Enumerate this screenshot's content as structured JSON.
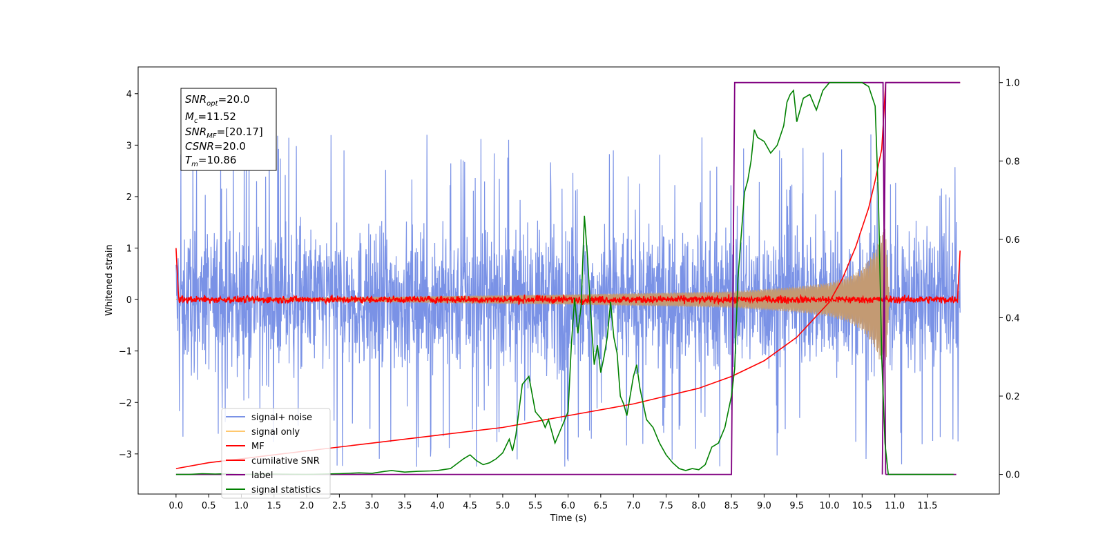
{
  "chart_data": {
    "type": "line",
    "xlabel": "Time (s)",
    "ylabel": "Whitened strain",
    "xlim": [
      -0.58,
      12.6
    ],
    "ylim": [
      -3.78,
      4.52
    ],
    "y2lim": [
      -0.05,
      1.04
    ],
    "x_ticks": [
      "0.0",
      "0.5",
      "1.0",
      "1.5",
      "2.0",
      "2.5",
      "3.0",
      "3.5",
      "4.0",
      "4.5",
      "5.0",
      "5.5",
      "6.0",
      "6.5",
      "7.0",
      "7.5",
      "8.0",
      "8.5",
      "9.0",
      "9.5",
      "10.0",
      "10.5",
      "11.0",
      "11.5"
    ],
    "y_ticks": [
      "−3",
      "−2",
      "−1",
      "0",
      "1",
      "2",
      "3",
      "4"
    ],
    "y2_ticks": [
      "0.0",
      "0.2",
      "0.4",
      "0.6",
      "0.8",
      "1.0"
    ],
    "annotation": {
      "snr_opt": {
        "base": "SNR",
        "sub": "opt",
        "value": "=20.0"
      },
      "mc": {
        "base": "M",
        "sub": "c",
        "value": "=11.52"
      },
      "snr_mf": {
        "base": "SNR",
        "sub": "MF",
        "value": "=[20.17]"
      },
      "csnr": {
        "base": "CSNR",
        "sub": "",
        "value": "=20.0"
      },
      "tm": {
        "base": "T",
        "sub": "m",
        "value": "=10.86"
      }
    },
    "legend_position": "lower-left",
    "series": [
      {
        "name": "signal+ noise",
        "color": "#7a92e6",
        "axis": "left",
        "kind": "noise",
        "t_start": 0.0,
        "t_end": 12.0,
        "core_amplitude": 1.5,
        "peak_range": [
          2.0,
          4.1
        ]
      },
      {
        "name": "signal only",
        "color": "#c39a73",
        "axis": "left",
        "kind": "chirp",
        "t_start": 0.0,
        "t_end": 12.0,
        "merger_time": 10.86,
        "envelope_t": [
          0.0,
          6.0,
          8.5,
          9.5,
          10.0,
          10.3,
          10.5,
          10.7,
          10.8,
          10.86,
          10.92,
          12.0
        ],
        "envelope_a": [
          0.0,
          0.1,
          0.16,
          0.25,
          0.33,
          0.45,
          0.6,
          0.95,
          1.3,
          1.4,
          0.0,
          0.0
        ]
      },
      {
        "name": "MF",
        "color": "#ff0000",
        "axis": "left",
        "kind": "mf",
        "t_start": 0.0,
        "t_end": 12.0,
        "start_value": 1.0,
        "end_value": 0.95,
        "noise_amplitude": 0.07
      },
      {
        "name": "cumilative SNR",
        "color": "#ff0000",
        "axis": "right",
        "x": [
          0.0,
          0.5,
          1.0,
          2.0,
          3.0,
          4.0,
          5.0,
          6.0,
          7.0,
          7.5,
          8.0,
          8.5,
          9.0,
          9.5,
          10.0,
          10.2,
          10.4,
          10.6,
          10.7,
          10.8,
          10.86,
          12.0
        ],
        "y": [
          0.015,
          0.03,
          0.04,
          0.06,
          0.08,
          0.1,
          0.12,
          0.15,
          0.18,
          0.2,
          0.22,
          0.25,
          0.29,
          0.35,
          0.44,
          0.5,
          0.58,
          0.68,
          0.75,
          0.83,
          1.0,
          1.0
        ]
      },
      {
        "name": "label",
        "color": "#800080",
        "axis": "right",
        "x": [
          0.0,
          8.5,
          8.55,
          10.82,
          10.86,
          12.0
        ],
        "y": [
          0.0,
          0.0,
          1.0,
          1.0,
          0.0,
          0.0
        ],
        "segments": [
          {
            "x": [
              0.0,
              8.5,
              8.55,
              10.82,
              10.86
            ],
            "y": [
              0.0,
              0.0,
              1.0,
              1.0,
              0.0
            ]
          },
          {
            "x": [
              10.86,
              11.94
            ],
            "y": [
              0.0,
              0.0
            ]
          },
          {
            "x": [
              10.81,
              10.86,
              12.0
            ],
            "y": [
              0.0,
              1.0,
              1.0
            ]
          }
        ]
      },
      {
        "name": "signal statistics",
        "color": "#008000",
        "axis": "right",
        "x": [
          0.0,
          0.2,
          0.4,
          0.6,
          0.8,
          1.0,
          1.5,
          2.0,
          2.5,
          2.8,
          3.0,
          3.2,
          3.3,
          3.5,
          3.7,
          3.9,
          4.0,
          4.2,
          4.4,
          4.5,
          4.6,
          4.7,
          4.8,
          4.9,
          5.0,
          5.1,
          5.15,
          5.2,
          5.3,
          5.4,
          5.5,
          5.6,
          5.65,
          5.7,
          5.8,
          5.9,
          6.0,
          6.05,
          6.1,
          6.15,
          6.2,
          6.25,
          6.3,
          6.35,
          6.4,
          6.45,
          6.5,
          6.55,
          6.6,
          6.65,
          6.7,
          6.75,
          6.8,
          6.85,
          6.9,
          6.95,
          7.0,
          7.05,
          7.1,
          7.15,
          7.2,
          7.3,
          7.4,
          7.5,
          7.6,
          7.7,
          7.8,
          7.9,
          8.0,
          8.1,
          8.2,
          8.3,
          8.4,
          8.5,
          8.55,
          8.6,
          8.7,
          8.75,
          8.8,
          8.85,
          8.9,
          9.0,
          9.1,
          9.2,
          9.3,
          9.35,
          9.4,
          9.45,
          9.5,
          9.6,
          9.7,
          9.8,
          9.9,
          10.0,
          10.1,
          10.2,
          10.3,
          10.4,
          10.5,
          10.6,
          10.7,
          10.75,
          10.8,
          10.85,
          10.9,
          10.95,
          11.0,
          11.1,
          11.5,
          11.9
        ],
        "y": [
          0.0,
          0.0,
          0.002,
          0.001,
          0.002,
          0.0,
          0.001,
          0.0,
          0.002,
          0.004,
          0.003,
          0.008,
          0.01,
          0.006,
          0.008,
          0.009,
          0.01,
          0.015,
          0.04,
          0.05,
          0.035,
          0.025,
          0.03,
          0.04,
          0.055,
          0.09,
          0.06,
          0.1,
          0.23,
          0.25,
          0.16,
          0.14,
          0.12,
          0.14,
          0.08,
          0.12,
          0.16,
          0.33,
          0.45,
          0.36,
          0.43,
          0.66,
          0.55,
          0.4,
          0.28,
          0.33,
          0.26,
          0.3,
          0.35,
          0.44,
          0.35,
          0.31,
          0.2,
          0.18,
          0.15,
          0.2,
          0.25,
          0.28,
          0.22,
          0.18,
          0.14,
          0.12,
          0.08,
          0.05,
          0.03,
          0.015,
          0.01,
          0.015,
          0.012,
          0.025,
          0.07,
          0.08,
          0.12,
          0.2,
          0.27,
          0.5,
          0.72,
          0.75,
          0.8,
          0.88,
          0.86,
          0.85,
          0.82,
          0.84,
          0.89,
          0.95,
          0.97,
          0.98,
          0.9,
          0.96,
          0.97,
          0.93,
          0.98,
          1.0,
          1.0,
          1.0,
          1.0,
          1.0,
          1.0,
          0.99,
          0.94,
          0.7,
          0.3,
          0.08,
          0.0,
          0.0,
          0.0,
          0.0,
          0.0,
          0.0
        ]
      }
    ]
  }
}
